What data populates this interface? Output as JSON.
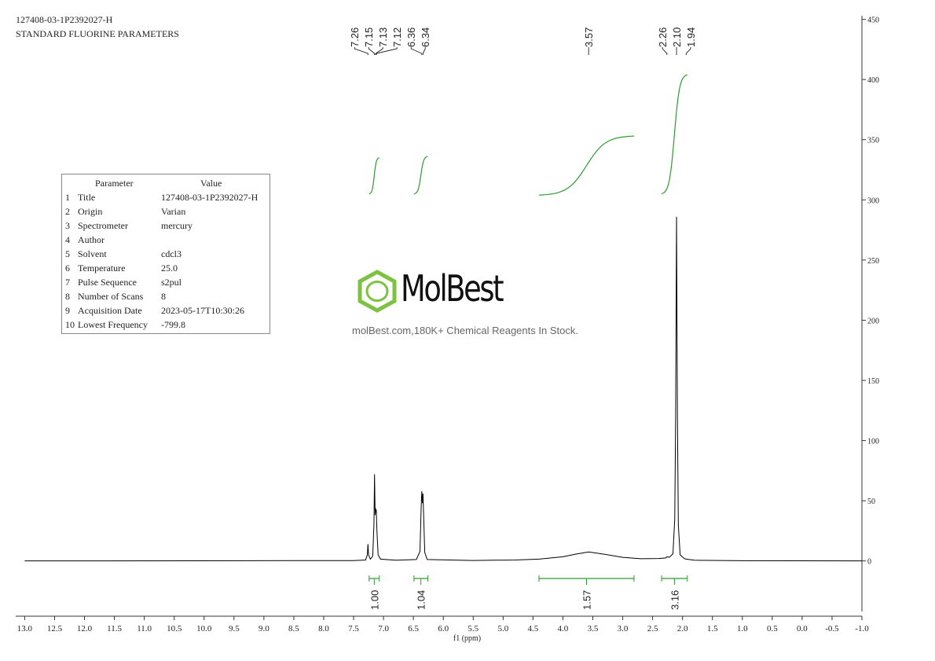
{
  "header": {
    "title": "127408-03-1P2392027-H",
    "subtitle": "STANDARD FLUORINE PARAMETERS"
  },
  "table": {
    "header": [
      "Parameter",
      "Value"
    ],
    "rows": [
      [
        "1",
        "Title",
        "127408-03-1P2392027-H"
      ],
      [
        "2",
        "Origin",
        "Varian"
      ],
      [
        "3",
        "Spectrometer",
        "mercury"
      ],
      [
        "4",
        "Author"
      ],
      [
        "5",
        "Solvent",
        "cdcl3"
      ],
      [
        "6",
        "Temperature",
        "25.0"
      ],
      [
        "7",
        "Pulse Sequence",
        "s2pul"
      ],
      [
        "8",
        "Number of Scans",
        "8"
      ],
      [
        "9",
        "Acquisition Date",
        "2023-05-17T10:30:26"
      ],
      [
        "10",
        "Lowest Frequency",
        "-799.8"
      ]
    ]
  },
  "watermark": {
    "brand": "MolBest",
    "tagline": "molBest.com,180K+ Chemical Reagents In Stock."
  },
  "chart_data": {
    "type": "line",
    "x_label": "f1 (ppm)",
    "color": "#000000",
    "integral_color": "#2e9b2e",
    "x": [
      13.0,
      7.5,
      7.3,
      7.27,
      7.26,
      7.25,
      7.22,
      7.18,
      7.16,
      7.15,
      7.14,
      7.13,
      7.12,
      7.11,
      7.09,
      7.05,
      6.8,
      6.45,
      6.39,
      6.37,
      6.36,
      6.35,
      6.34,
      6.33,
      6.31,
      6.27,
      5.5,
      4.8,
      4.4,
      4.0,
      3.8,
      3.57,
      3.3,
      3.0,
      2.7,
      2.4,
      2.28,
      2.26,
      2.22,
      2.16,
      2.13,
      2.115,
      2.1,
      2.085,
      2.07,
      2.04,
      1.97,
      1.94,
      1.8,
      1.0,
      -1.0
    ],
    "values": [
      0,
      0.3,
      0.8,
      5,
      14,
      5,
      1.5,
      4,
      30,
      72,
      38,
      43,
      42,
      25,
      5,
      1.5,
      0.6,
      1.2,
      8,
      45,
      58,
      48,
      56,
      40,
      7,
      1.2,
      0.4,
      0.8,
      1.5,
      3.5,
      5.5,
      7.5,
      5.5,
      3,
      1.8,
      2,
      2.5,
      3.5,
      3,
      6,
      35,
      120,
      286,
      120,
      30,
      5,
      2,
      1.5,
      0.6,
      0.2,
      0
    ],
    "xlim": [
      13.15,
      -1.0
    ],
    "xticks": [
      {
        "value": 13,
        "label": "13.0"
      },
      12.5,
      {
        "value": 12,
        "label": "12.0"
      },
      11.5,
      {
        "value": 11,
        "label": "11.0"
      },
      10.5,
      {
        "value": 10,
        "label": "10.0"
      },
      9.5,
      {
        "value": 9,
        "label": "9.0"
      },
      8.5,
      {
        "value": 8,
        "label": "8.0"
      },
      7.5,
      {
        "value": 7,
        "label": "7.0"
      },
      6.5,
      {
        "value": 6,
        "label": "6.0"
      },
      5.5,
      {
        "value": 5,
        "label": "5.0"
      },
      4.5,
      {
        "value": 4,
        "label": "4.0"
      },
      3.5,
      {
        "value": 3,
        "label": "3.0"
      },
      2.5,
      {
        "value": 2,
        "label": "2.0"
      },
      1.5,
      {
        "value": 1,
        "label": "1.0"
      },
      0.5,
      {
        "value": 0,
        "label": "0.0"
      },
      -0.5,
      {
        "value": -1,
        "label": "-1.0"
      }
    ],
    "ylim": [
      -42,
      453
    ],
    "yticks": [
      0,
      50,
      100,
      150,
      200,
      250,
      300,
      350,
      400,
      450
    ],
    "peaks": [
      7.26,
      7.15,
      7.13,
      7.12,
      6.36,
      6.34,
      3.57,
      2.26,
      {
        "value": 2.1,
        "label": "2.10"
      },
      1.94
    ],
    "integrals": [
      {
        "range": [
          7.24,
          7.07
        ],
        "value": 1,
        "value_label": "1.00",
        "curve": [
          305,
          335
        ]
      },
      {
        "range": [
          6.49,
          6.26
        ],
        "value": 1.04,
        "curve": [
          305,
          336
        ]
      },
      {
        "range": [
          4.4,
          2.81
        ],
        "value": 1.57,
        "curve": [
          304,
          353
        ]
      },
      {
        "range": [
          2.35,
          1.92
        ],
        "value": 3.16,
        "curve": [
          305,
          404
        ]
      }
    ]
  }
}
